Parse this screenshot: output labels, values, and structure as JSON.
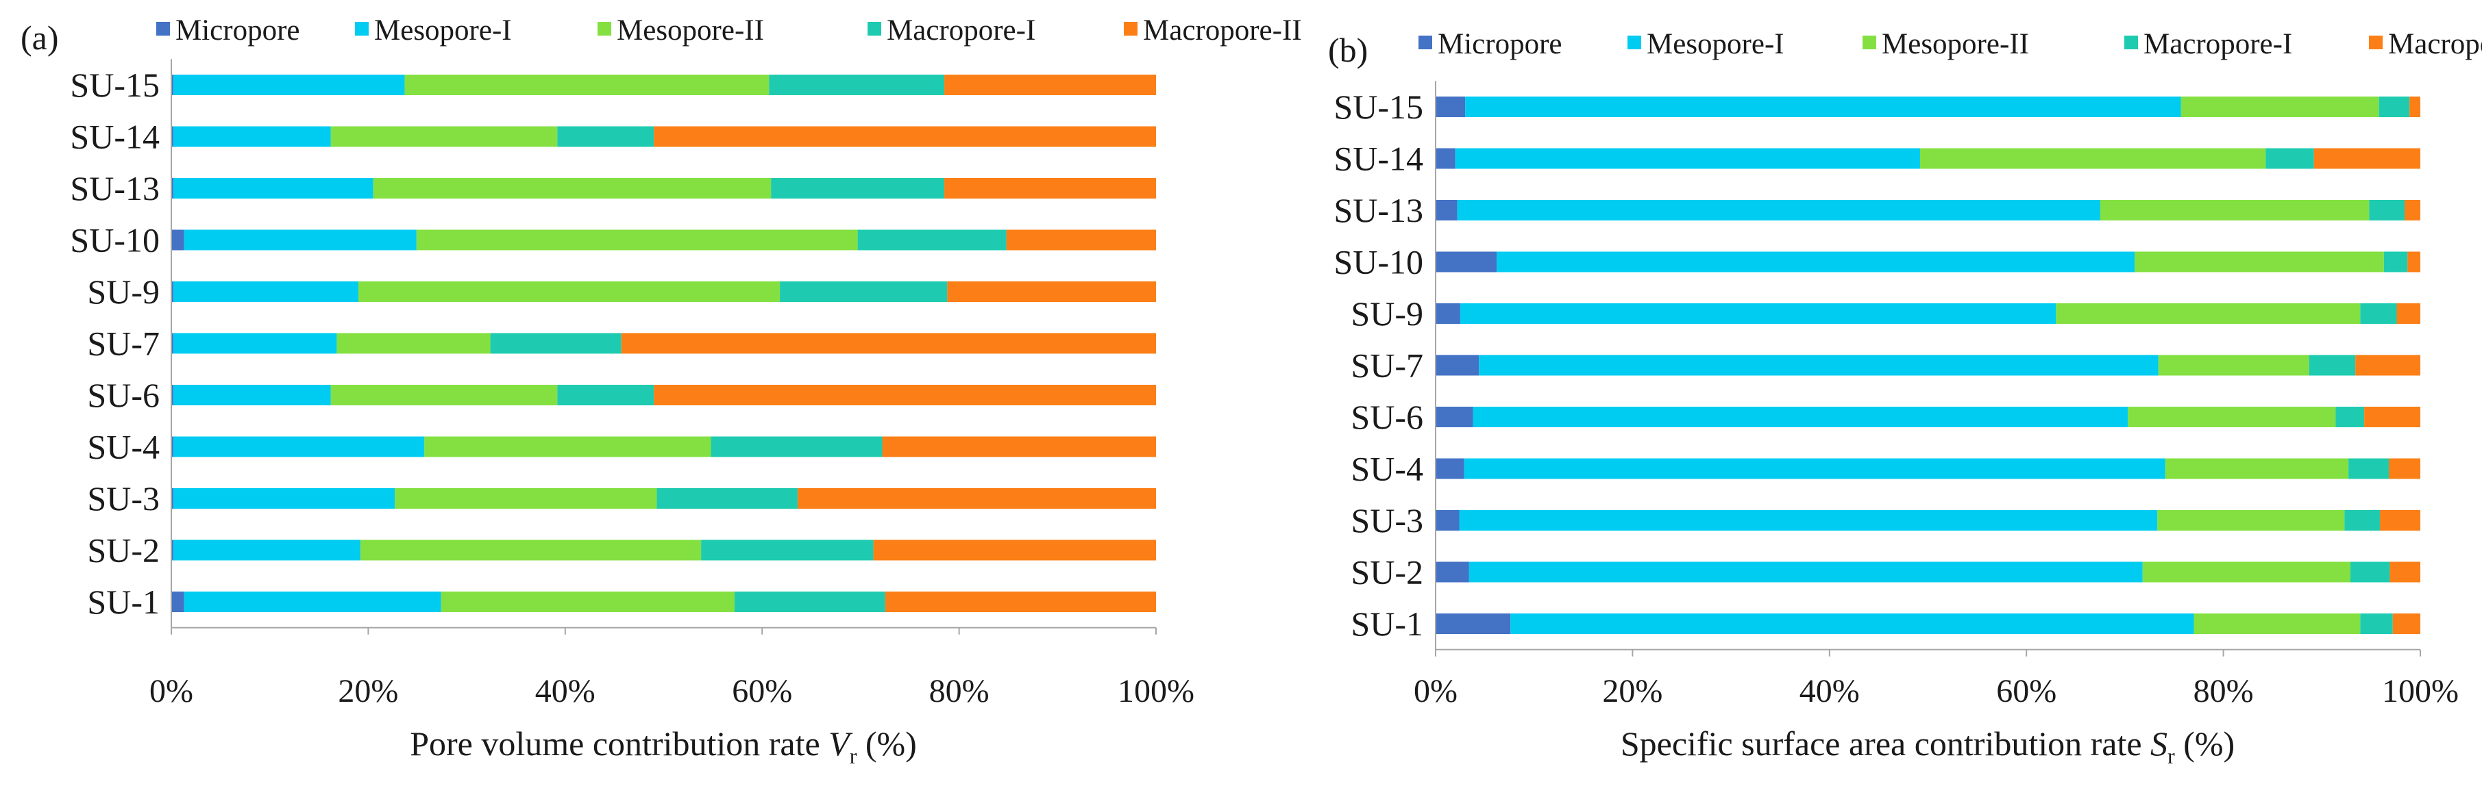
{
  "colors": {
    "Micropore": "#4472c4",
    "Mesopore-I": "#00ccf2",
    "Mesopore-II": "#84e041",
    "Macropore-I": "#1ecbb0",
    "Macropore-II": "#fb7f16",
    "axis": "#a6a6a6"
  },
  "chart_data": [
    {
      "type": "bar",
      "orientation": "horizontal",
      "stacked": "percent",
      "panel_label": "(a)",
      "title": "",
      "xlabel": {
        "main": "Pore volume contribution rate ",
        "var": "V",
        "sub": "r",
        "unit": " (%)"
      },
      "ylabel": "",
      "xlim": [
        0,
        100
      ],
      "xticks": [
        "0%",
        "20%",
        "40%",
        "60%",
        "80%",
        "100%"
      ],
      "legend": {
        "position": "top",
        "entries": [
          "Micropore",
          "Mesopore-I",
          "Mesopore-II",
          "Macropore-I",
          "Macropore-II"
        ]
      },
      "categories": [
        "SU-15",
        "SU-14",
        "SU-13",
        "SU-10",
        "SU-9",
        "SU-7",
        "SU-6",
        "SU-4",
        "SU-3",
        "SU-2",
        "SU-1"
      ],
      "series": [
        {
          "name": "Micropore",
          "values": [
            0.2,
            0.2,
            0.2,
            1.3,
            0.2,
            0.2,
            0.2,
            0.2,
            0.2,
            0.2,
            1.3
          ]
        },
        {
          "name": "Mesopore-I",
          "values": [
            23.5,
            16.0,
            20.3,
            23.6,
            18.8,
            16.6,
            16.0,
            25.5,
            22.5,
            19.0,
            26.1
          ]
        },
        {
          "name": "Mesopore-II",
          "values": [
            37.0,
            23.0,
            40.4,
            44.8,
            42.8,
            15.6,
            23.0,
            29.1,
            26.6,
            34.6,
            29.8
          ]
        },
        {
          "name": "Macropore-I",
          "values": [
            17.8,
            9.8,
            17.6,
            15.1,
            17.0,
            13.3,
            9.8,
            17.4,
            14.3,
            17.5,
            15.3
          ]
        },
        {
          "name": "Macropore-II",
          "values": [
            21.5,
            51.0,
            21.5,
            15.2,
            21.2,
            54.3,
            51.0,
            27.8,
            36.4,
            28.7,
            27.5
          ]
        }
      ]
    },
    {
      "type": "bar",
      "orientation": "horizontal",
      "stacked": "percent",
      "panel_label": "(b)",
      "title": "",
      "xlabel": {
        "main": "Specific surface area contribution rate ",
        "var": "S",
        "sub": "r",
        "unit": " (%)"
      },
      "ylabel": "",
      "xlim": [
        0,
        100
      ],
      "xticks": [
        "0%",
        "20%",
        "40%",
        "60%",
        "80%",
        "100%"
      ],
      "legend": {
        "position": "top",
        "entries": [
          "Micropore",
          "Mesopore-I",
          "Mesopore-II",
          "Macropore-I",
          "Macropore-II"
        ]
      },
      "categories": [
        "SU-15",
        "SU-14",
        "SU-13",
        "SU-10",
        "SU-9",
        "SU-7",
        "SU-6",
        "SU-4",
        "SU-3",
        "SU-2",
        "SU-1"
      ],
      "series": [
        {
          "name": "Micropore",
          "values": [
            3.0,
            2.0,
            2.2,
            6.2,
            2.5,
            4.4,
            3.8,
            2.9,
            2.4,
            3.4,
            7.6
          ]
        },
        {
          "name": "Mesopore-I",
          "values": [
            72.7,
            47.2,
            65.3,
            64.8,
            60.5,
            69.0,
            66.5,
            71.2,
            70.9,
            68.4,
            69.4
          ]
        },
        {
          "name": "Mesopore-II",
          "values": [
            20.1,
            35.1,
            27.3,
            25.3,
            30.9,
            15.3,
            21.1,
            18.6,
            19.0,
            21.1,
            16.9
          ]
        },
        {
          "name": "Macropore-I",
          "values": [
            3.1,
            4.9,
            3.6,
            2.4,
            3.7,
            4.7,
            2.9,
            4.1,
            3.6,
            4.0,
            3.3
          ]
        },
        {
          "name": "Macropore-II",
          "values": [
            1.1,
            10.8,
            1.6,
            1.3,
            2.4,
            6.6,
            5.7,
            3.2,
            4.1,
            3.1,
            2.8
          ]
        }
      ]
    }
  ]
}
